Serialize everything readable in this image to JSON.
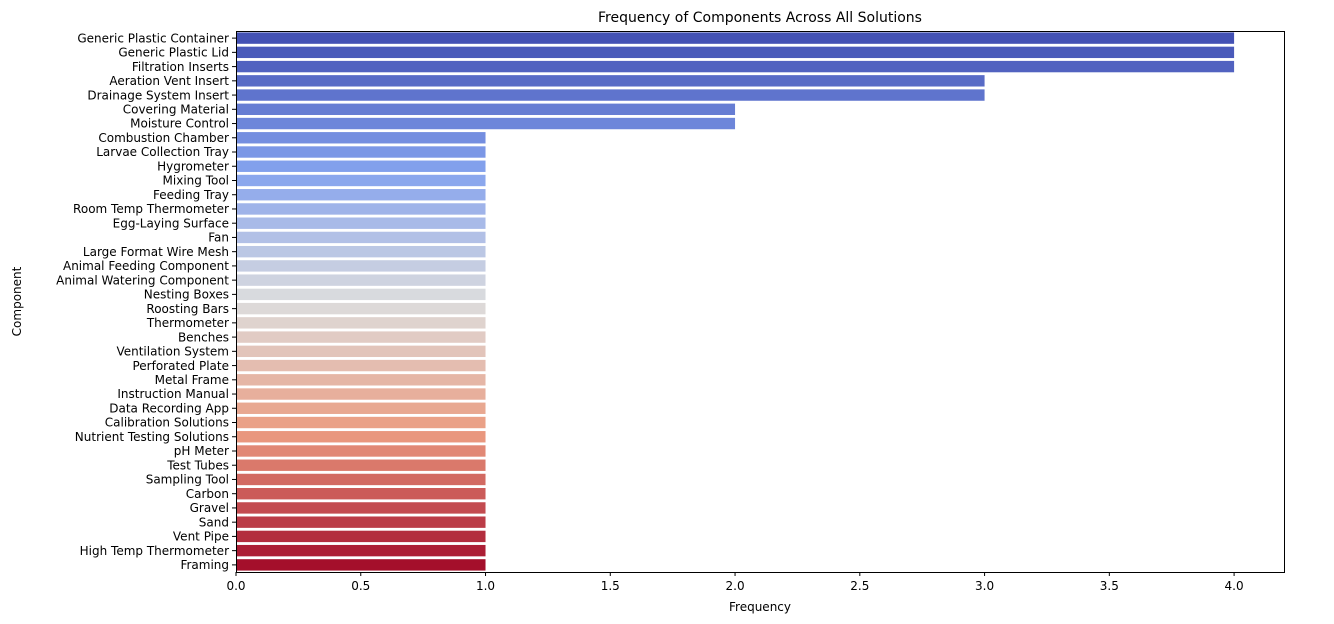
{
  "chart_data": {
    "type": "bar",
    "orientation": "horizontal",
    "title": "Frequency of Components Across All Solutions",
    "xlabel": "Frequency",
    "ylabel": "Component",
    "xlim": [
      0,
      4.2
    ],
    "x_ticks": [
      "0.0",
      "0.5",
      "1.0",
      "1.5",
      "2.0",
      "2.5",
      "3.0",
      "3.5",
      "4.0"
    ],
    "grid": false,
    "legend": "none",
    "palette": "coolwarm",
    "categories": [
      "Generic Plastic Container",
      "Generic Plastic Lid",
      "Filtration Inserts",
      "Aeration Vent Insert",
      "Drainage System Insert",
      "Covering Material",
      "Moisture Control",
      "Combustion Chamber",
      "Larvae Collection Tray",
      "Hygrometer",
      "Mixing Tool",
      "Feeding Tray",
      "Room Temp Thermometer",
      "Egg-Laying Surface",
      "Fan",
      "Large Format Wire Mesh",
      "Animal Feeding Component",
      "Animal Watering Component",
      "Nesting Boxes",
      "Roosting Bars",
      "Thermometer",
      "Benches",
      "Ventilation System",
      "Perforated Plate",
      "Metal Frame",
      "Instruction Manual",
      "Data Recording App",
      "Calibration Solutions",
      "Nutrient Testing Solutions",
      "pH Meter",
      "Test Tubes",
      "Sampling Tool",
      "Carbon",
      "Gravel",
      "Sand",
      "Vent Pipe",
      "High Temp Thermometer",
      "Framing"
    ],
    "values": [
      4,
      4,
      4,
      3,
      3,
      2,
      2,
      1,
      1,
      1,
      1,
      1,
      1,
      1,
      1,
      1,
      1,
      1,
      1,
      1,
      1,
      1,
      1,
      1,
      1,
      1,
      1,
      1,
      1,
      1,
      1,
      1,
      1,
      1,
      1,
      1,
      1,
      1
    ]
  }
}
